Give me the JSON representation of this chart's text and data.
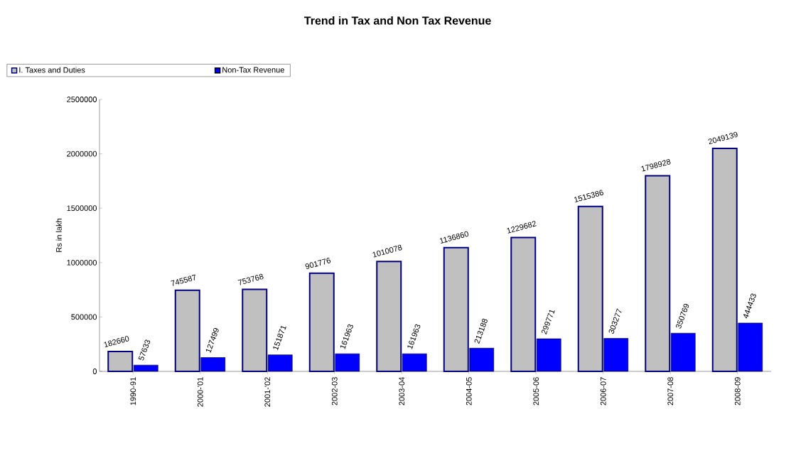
{
  "chart_data": {
    "type": "bar",
    "title": "Trend in Tax and Non Tax Revenue",
    "ylabel": "Rs in lakh",
    "categories": [
      "1990-91",
      "2000-'01",
      "2001-'02",
      "2002-03",
      "2003-04",
      "2004-05",
      "2005-06",
      "2006-07",
      "2007-08",
      "2008-09"
    ],
    "series": [
      {
        "name": "I. Taxes and Duties",
        "color": "#c0c0c0",
        "values": [
          182660,
          745587,
          753768,
          901776,
          1010078,
          1136860,
          1229682,
          1515386,
          1798928,
          2049139
        ]
      },
      {
        "name": "Non-Tax Revenue",
        "color": "#0000ff",
        "values": [
          57633,
          127499,
          151871,
          161963,
          161963,
          213188,
          299771,
          303277,
          350769,
          444433
        ]
      }
    ],
    "ylim": [
      0,
      2500000
    ],
    "yticks": [
      0,
      500000,
      1000000,
      1500000,
      2000000,
      2500000
    ],
    "data_labels": true,
    "legend": "top",
    "grid": false
  }
}
